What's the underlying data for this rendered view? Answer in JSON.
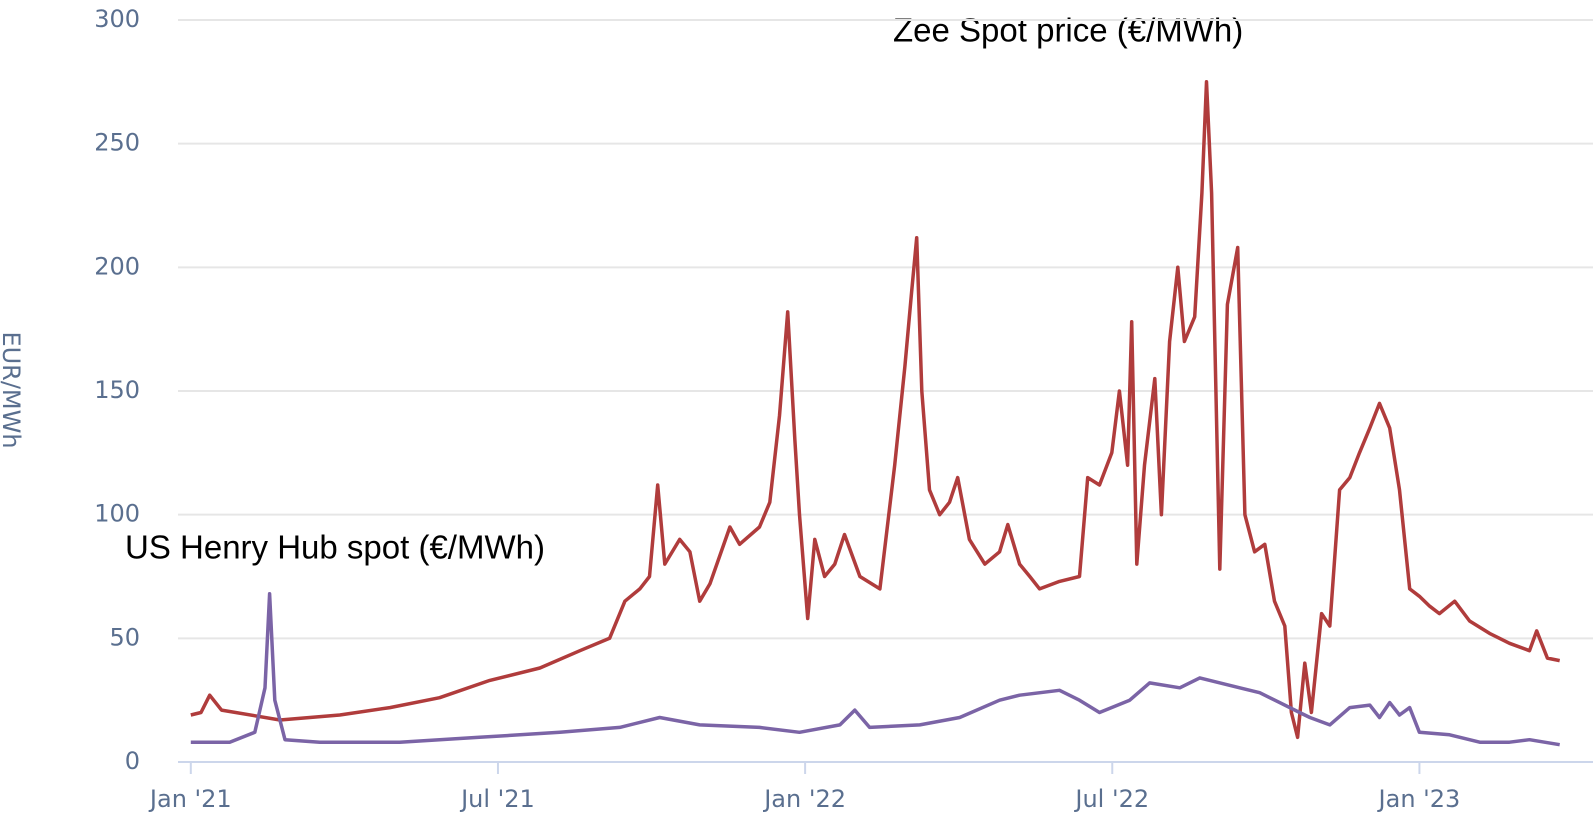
{
  "chart_data": {
    "type": "line",
    "y_label": "EUR/MWh",
    "annotations": [
      "Zee Spot price (€/MWh)",
      "US Henry Hub spot (€/MWh)"
    ],
    "xlim": [
      -0.25,
      27.0
    ],
    "xticks": [
      {
        "value": 0,
        "label": "Jan '21"
      },
      {
        "value": 6,
        "label": "Jul '21"
      },
      {
        "value": 12,
        "label": "Jan '22"
      },
      {
        "value": 18,
        "label": "Jul '22"
      },
      {
        "value": 24,
        "label": "Jan '23"
      }
    ],
    "ylim": [
      0,
      300
    ],
    "yticks": [
      0,
      50,
      100,
      150,
      200,
      250,
      300
    ],
    "grid": true,
    "series": [
      {
        "name": "Zee Spot price (€/MWh)",
        "color": "#b03c3c",
        "x": [
          0,
          0.2,
          0.37,
          0.6,
          1.74,
          2.91,
          3.89,
          4.86,
          5.84,
          6.82,
          7.6,
          8.18,
          8.48,
          8.77,
          8.96,
          9.12,
          9.26,
          9.55,
          9.75,
          9.94,
          10.14,
          10.53,
          10.72,
          11.11,
          11.31,
          11.5,
          11.66,
          11.8,
          11.89,
          12.05,
          12.19,
          12.38,
          12.58,
          12.77,
          13.07,
          13.46,
          13.75,
          13.95,
          14.08,
          14.18,
          14.28,
          14.43,
          14.63,
          14.82,
          14.98,
          15.21,
          15.51,
          15.8,
          15.96,
          16.19,
          16.39,
          16.58,
          16.97,
          17.36,
          17.52,
          17.75,
          17.99,
          18.14,
          18.3,
          18.38,
          18.48,
          18.63,
          18.83,
          18.96,
          19.12,
          19.28,
          19.41,
          19.61,
          19.75,
          19.84,
          19.94,
          20.1,
          20.25,
          20.45,
          20.59,
          20.78,
          20.98,
          21.17,
          21.37,
          21.5,
          21.62,
          21.76,
          21.89,
          22.09,
          22.25,
          22.44,
          22.64,
          22.83,
          23.03,
          23.22,
          23.42,
          23.61,
          23.81,
          24.0,
          24.2,
          24.39,
          24.69,
          24.98,
          25.37,
          25.76,
          26.15,
          26.29,
          26.5,
          26.74
        ],
        "values": [
          19,
          20,
          27,
          21,
          17,
          19,
          22,
          26,
          33,
          38,
          45,
          50,
          65,
          70,
          75,
          112,
          80,
          90,
          85,
          65,
          72,
          95,
          88,
          95,
          105,
          140,
          182,
          130,
          100,
          58,
          90,
          75,
          80,
          92,
          75,
          70,
          120,
          160,
          190,
          212,
          150,
          110,
          100,
          105,
          115,
          90,
          80,
          85,
          96,
          80,
          75,
          70,
          73,
          75,
          115,
          112,
          125,
          150,
          120,
          178,
          80,
          120,
          155,
          100,
          170,
          200,
          170,
          180,
          230,
          275,
          230,
          78,
          185,
          208,
          100,
          85,
          88,
          65,
          55,
          20,
          10,
          40,
          20,
          60,
          55,
          110,
          115,
          125,
          135,
          145,
          135,
          110,
          70,
          67,
          63,
          60,
          65,
          57,
          52,
          48,
          45,
          53,
          42,
          41
        ]
      },
      {
        "name": "US Henry Hub spot (€/MWh)",
        "color": "#7b64a6",
        "x": [
          0,
          0.76,
          1.25,
          1.45,
          1.54,
          1.64,
          1.84,
          2.52,
          4.08,
          5.64,
          7.21,
          8.38,
          9.16,
          9.94,
          11.11,
          11.89,
          12.68,
          12.97,
          13.26,
          14.24,
          15.02,
          15.8,
          16.19,
          16.97,
          17.36,
          17.75,
          18.34,
          18.73,
          19.32,
          19.71,
          20.49,
          20.88,
          21.27,
          21.66,
          21.86,
          22.25,
          22.64,
          23.03,
          23.22,
          23.42,
          23.61,
          23.81,
          24.0,
          24.59,
          25.18,
          25.76,
          26.15,
          26.74
        ],
        "values": [
          8,
          8,
          12,
          30,
          68,
          25,
          9,
          8,
          8,
          10,
          12,
          14,
          18,
          15,
          14,
          12,
          15,
          21,
          14,
          15,
          18,
          25,
          27,
          29,
          25,
          20,
          25,
          32,
          30,
          34,
          30,
          28,
          24,
          20,
          18,
          15,
          22,
          23,
          18,
          24,
          19,
          22,
          12,
          11,
          8,
          8,
          9,
          7
        ]
      }
    ]
  }
}
